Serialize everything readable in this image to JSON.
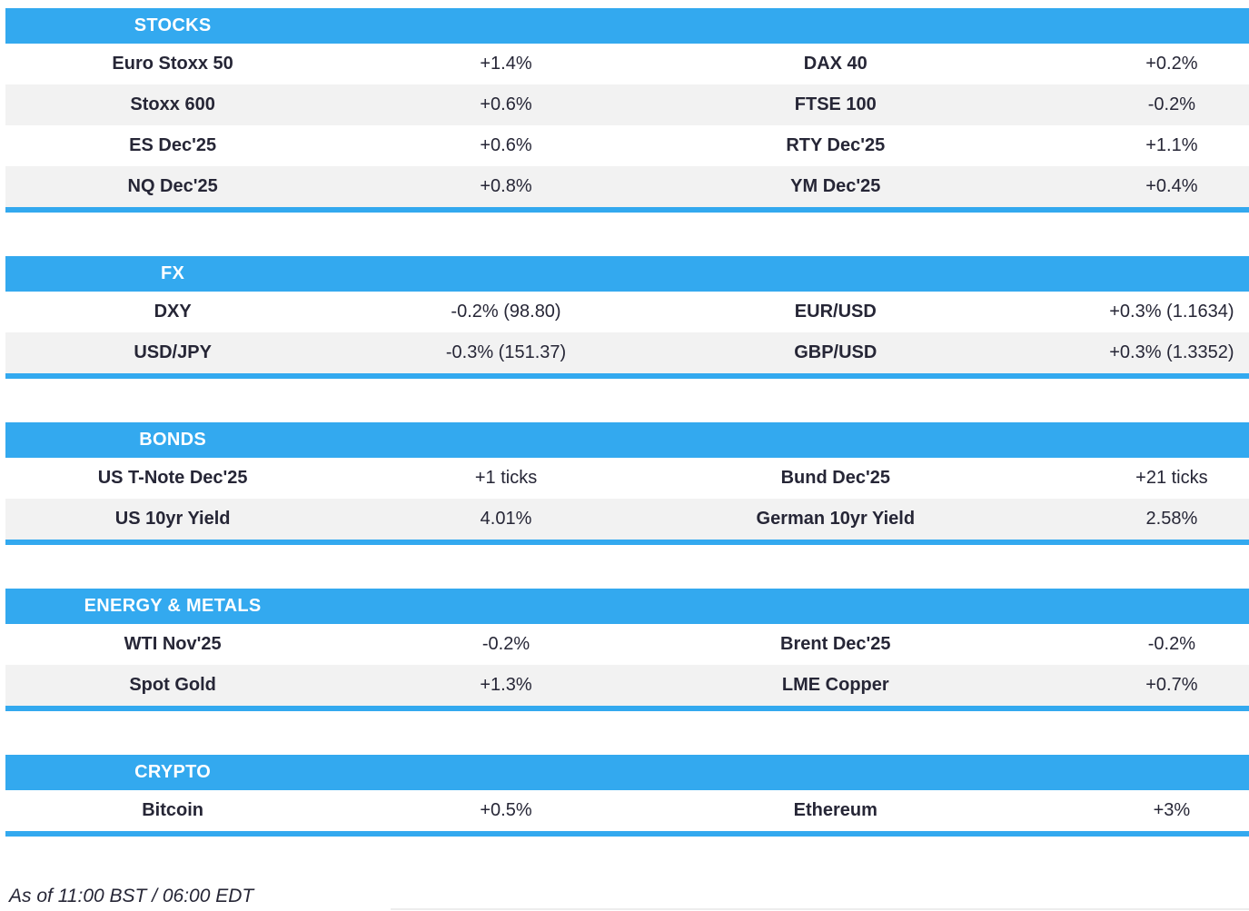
{
  "theme": {
    "accent_color": "#33a9ef",
    "row_alt_color": "#f2f2f2",
    "text_color": "#262636",
    "header_text_color": "#ffffff"
  },
  "sections": [
    {
      "title": "STOCKS",
      "rows": [
        {
          "left_label": "Euro Stoxx 50",
          "left_value": "+1.4%",
          "right_label": "DAX 40",
          "right_value": "+0.2%"
        },
        {
          "left_label": "Stoxx 600",
          "left_value": "+0.6%",
          "right_label": "FTSE 100",
          "right_value": "-0.2%"
        },
        {
          "left_label": "ES Dec'25",
          "left_value": "+0.6%",
          "right_label": "RTY Dec'25",
          "right_value": "+1.1%"
        },
        {
          "left_label": "NQ Dec'25",
          "left_value": "+0.8%",
          "right_label": "YM Dec'25",
          "right_value": "+0.4%"
        }
      ]
    },
    {
      "title": "FX",
      "rows": [
        {
          "left_label": "DXY",
          "left_value": "-0.2% (98.80)",
          "right_label": "EUR/USD",
          "right_value": "+0.3% (1.1634)"
        },
        {
          "left_label": "USD/JPY",
          "left_value": "-0.3% (151.37)",
          "right_label": "GBP/USD",
          "right_value": "+0.3% (1.3352)"
        }
      ]
    },
    {
      "title": "BONDS",
      "rows": [
        {
          "left_label": "US T-Note Dec'25",
          "left_value": "+1 ticks",
          "right_label": "Bund Dec'25",
          "right_value": "+21 ticks"
        },
        {
          "left_label": "US 10yr Yield",
          "left_value": "4.01%",
          "right_label": "German 10yr Yield",
          "right_value": "2.58%"
        }
      ]
    },
    {
      "title": "ENERGY & METALS",
      "rows": [
        {
          "left_label": "WTI Nov'25",
          "left_value": "-0.2%",
          "right_label": "Brent Dec'25",
          "right_value": "-0.2%"
        },
        {
          "left_label": "Spot Gold",
          "left_value": "+1.3%",
          "right_label": "LME Copper",
          "right_value": "+0.7%"
        }
      ]
    },
    {
      "title": "CRYPTO",
      "rows": [
        {
          "left_label": "Bitcoin",
          "left_value": "+0.5%",
          "right_label": "Ethereum",
          "right_value": "+3%"
        }
      ]
    }
  ],
  "footer": {
    "as_of": "As of 11:00 BST / 06:00 EDT"
  }
}
